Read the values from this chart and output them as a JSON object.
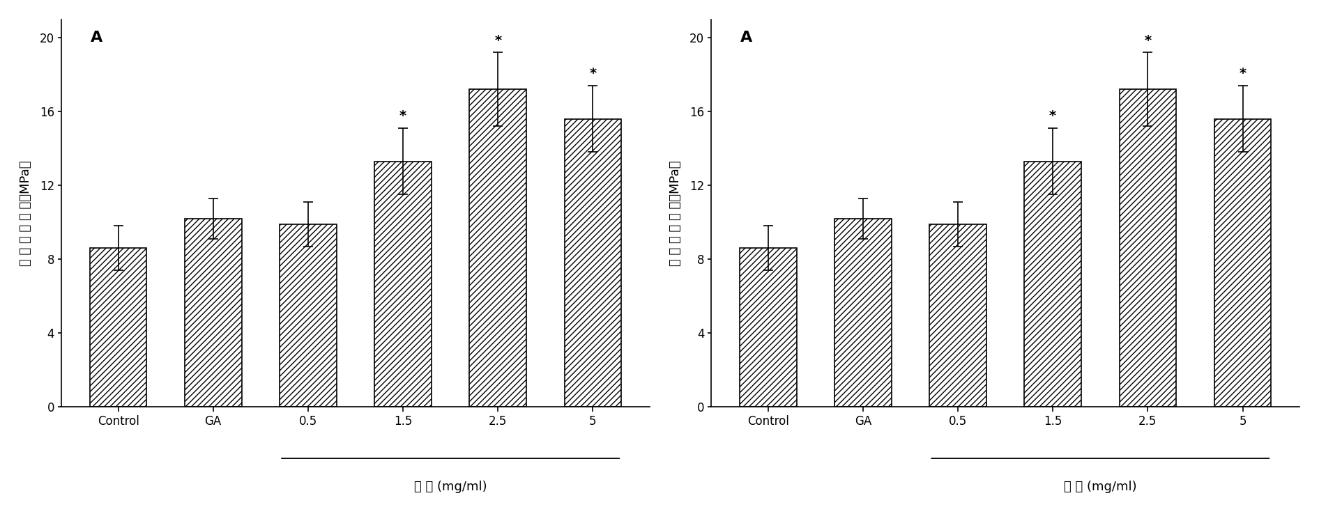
{
  "categories": [
    "Control",
    "GA",
    "0.5",
    "1.5",
    "2.5",
    "5"
  ],
  "values": [
    8.6,
    10.2,
    9.9,
    13.3,
    17.2,
    15.6
  ],
  "errors": [
    1.2,
    1.1,
    1.2,
    1.8,
    2.0,
    1.8
  ],
  "significant": [
    false,
    false,
    false,
    true,
    true,
    true
  ],
  "panel_label": "A",
  "ylabel": "最 大 拉 伸 强 度（MPa）",
  "xlabel": "浓 度 (mg/ml)",
  "xlabel_bracket_start": 2,
  "xlabel_bracket_end": 5,
  "ylim": [
    0,
    21
  ],
  "yticks": [
    0,
    4,
    8,
    12,
    16,
    20
  ],
  "hatch_pattern": "////",
  "bar_color": "white",
  "bar_edgecolor": "black",
  "background_color": "white",
  "fig_width": 18.92,
  "fig_height": 7.38,
  "dpi": 100,
  "title_fontsize": 16,
  "label_fontsize": 13,
  "tick_fontsize": 12,
  "star_fontsize": 14,
  "panel_fontsize": 16
}
